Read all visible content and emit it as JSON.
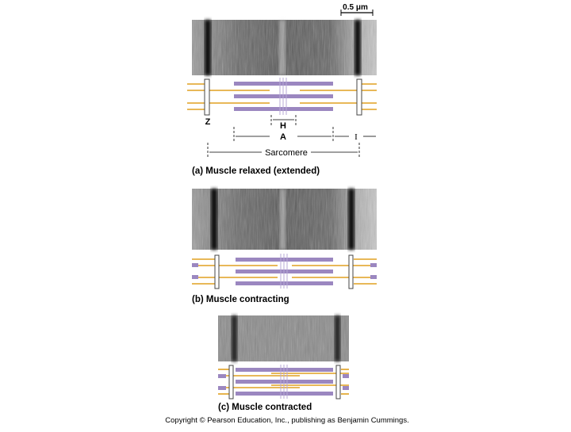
{
  "scale_bar": "0.5 μm",
  "labels": {
    "z": "Z",
    "h": "H",
    "a": "A",
    "i": "I",
    "sarcomere": "Sarcomere"
  },
  "panels": [
    {
      "caption": "(a) Muscle relaxed (extended)"
    },
    {
      "caption": "(b) Muscle contracting"
    },
    {
      "caption": "(c) Muscle contracted"
    }
  ],
  "copyright": "Copyright © Pearson Education, Inc., publishing as Benjamin Cummings."
}
